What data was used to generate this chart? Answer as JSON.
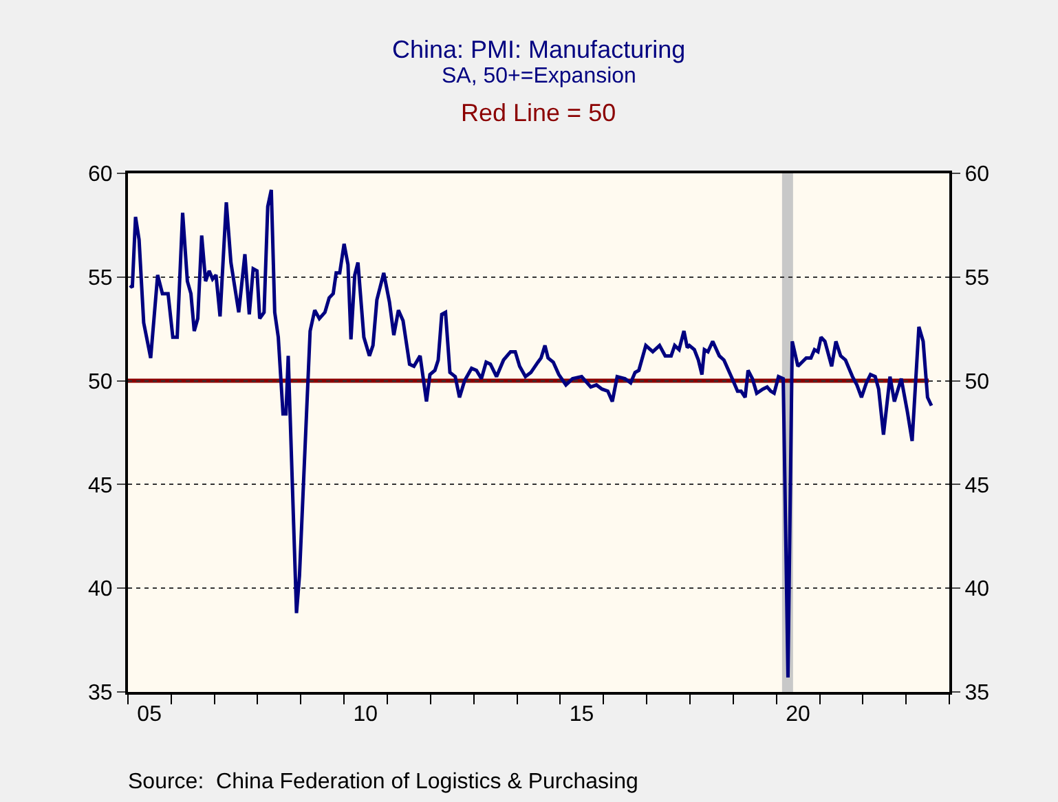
{
  "chart_data": {
    "type": "line",
    "title": "China: PMI: Manufacturing",
    "subtitle": "SA, 50+=Expansion",
    "annotations": [
      "Red Line = 50",
      "Source:  China Federation of Logistics & Purchasing"
    ],
    "x": [
      "2005-01-19",
      "2005-02-07",
      "2005-03-06",
      "2005-04-05",
      "2005-05-14",
      "2005-07-12",
      "2005-09-09",
      "2005-10-19",
      "2005-12-06",
      "2006-01-15",
      "2006-02-21",
      "2006-04-08",
      "2006-05-18",
      "2006-06-17",
      "2006-07-15",
      "2006-08-14",
      "2006-09-16",
      "2006-10-19",
      "2006-11-18",
      "2006-12-17",
      "2007-01-15",
      "2007-02-18",
      "2007-04-12",
      "2007-05-21",
      "2007-07-26",
      "2007-09-16",
      "2007-10-23",
      "2007-11-25",
      "2007-12-27",
      "2008-01-19",
      "2008-02-25",
      "2008-03-27",
      "2008-04-26",
      "2008-05-25",
      "2008-06-24",
      "2008-08-03",
      "2008-08-28",
      "2008-09-16",
      "2008-11-25",
      "2008-12-20",
      "2009-03-20",
      "2009-04-28",
      "2009-06-06",
      "2009-07-23",
      "2009-08-28",
      "2009-10-01",
      "2009-10-26",
      "2009-11-25",
      "2010-01-01",
      "2010-02-03",
      "2010-02-28",
      "2010-04-01",
      "2010-04-28",
      "2010-06-17",
      "2010-08-03",
      "2010-09-02",
      "2010-10-05",
      "2010-12-02",
      "2011-01-19",
      "2011-02-25",
      "2011-04-05",
      "2011-05-14",
      "2011-07-08",
      "2011-08-14",
      "2011-10-05",
      "2011-11-28",
      "2011-12-27",
      "2012-02-07",
      "2012-03-06",
      "2012-04-05",
      "2012-05-07",
      "2012-06-13",
      "2012-07-28",
      "2012-09-02",
      "2012-10-15",
      "2012-12-13",
      "2013-01-23",
      "2013-03-06",
      "2013-04-15",
      "2013-05-21",
      "2013-07-12",
      "2013-09-09",
      "2013-11-07",
      "2013-12-17",
      "2014-01-23",
      "2014-03-13",
      "2014-04-28",
      "2014-06-27",
      "2014-07-23",
      "2014-08-25",
      "2014-09-20",
      "2014-11-03",
      "2014-12-20",
      "2015-02-18",
      "2015-04-15",
      "2015-07-01",
      "2015-09-16",
      "2015-11-03",
      "2015-12-20",
      "2016-02-07",
      "2016-03-16",
      "2016-04-26",
      "2016-07-01",
      "2016-08-18",
      "2016-09-24",
      "2016-10-26",
      "2016-12-24",
      "2017-02-21",
      "2017-04-19",
      "2017-06-06",
      "2017-07-26",
      "2017-08-25",
      "2017-10-01",
      "2017-11-11",
      "2017-12-09",
      "2017-12-27",
      "2018-02-07",
      "2018-03-13",
      "2018-04-12",
      "2018-05-03",
      "2018-06-02",
      "2018-07-12",
      "2018-09-06",
      "2018-10-15",
      "2018-12-24",
      "2019-02-07",
      "2019-03-09",
      "2019-04-12",
      "2019-05-07",
      "2019-06-13",
      "2019-07-19",
      "2019-09-09",
      "2019-10-15",
      "2019-11-14",
      "2019-12-13",
      "2020-01-19",
      "2020-02-28",
      "2020-04-08",
      "2020-05-14",
      "2020-07-01",
      "2020-09-09",
      "2020-10-19",
      "2020-11-18",
      "2020-12-17",
      "2021-01-12",
      "2021-02-14",
      "2021-04-12",
      "2021-05-18",
      "2021-06-27",
      "2021-08-07",
      "2021-10-05",
      "2021-11-11",
      "2021-12-20",
      "2022-01-30",
      "2022-03-06",
      "2022-04-15",
      "2022-05-14",
      "2022-06-24",
      "2022-08-18",
      "2022-09-24",
      "2022-11-21",
      "2023-01-12",
      "2023-02-21",
      "2023-04-19",
      "2023-05-25",
      "2023-07-01",
      "2023-08-03"
    ],
    "series": [
      {
        "color": "#000080",
        "values": [
          54.6,
          54.5,
          57.9,
          56.8,
          52.8,
          51.1,
          55.1,
          54.2,
          54.2,
          52.1,
          52.1,
          58.1,
          54.8,
          54.2,
          52.4,
          53.0,
          57.0,
          54.8,
          55.3,
          54.9,
          55.1,
          53.1,
          58.6,
          55.7,
          53.3,
          56.1,
          53.2,
          55.4,
          55.3,
          53.0,
          53.3,
          58.4,
          59.2,
          53.3,
          52.1,
          48.4,
          48.4,
          51.2,
          38.8,
          40.6,
          52.4,
          53.4,
          53.0,
          53.3,
          54.0,
          54.2,
          55.2,
          55.2,
          56.6,
          55.6,
          52.0,
          55.1,
          55.7,
          52.1,
          51.2,
          51.7,
          53.9,
          55.2,
          53.8,
          52.2,
          53.4,
          52.9,
          50.8,
          50.7,
          51.2,
          49.0,
          50.3,
          50.5,
          51.0,
          53.2,
          53.3,
          50.4,
          50.2,
          49.2,
          50.0,
          50.6,
          50.5,
          50.1,
          50.9,
          50.8,
          50.2,
          51.0,
          51.4,
          51.4,
          50.7,
          50.2,
          50.4,
          50.9,
          51.1,
          51.7,
          51.1,
          50.9,
          50.3,
          49.8,
          50.1,
          50.2,
          49.7,
          49.8,
          49.6,
          49.5,
          49.0,
          50.2,
          50.1,
          49.9,
          50.4,
          50.5,
          51.7,
          51.4,
          51.7,
          51.2,
          51.2,
          51.7,
          51.5,
          52.4,
          51.6,
          51.7,
          51.5,
          51.0,
          50.3,
          51.5,
          51.4,
          51.9,
          51.2,
          51.0,
          50.1,
          49.5,
          49.5,
          49.2,
          50.5,
          50.1,
          49.4,
          49.6,
          49.7,
          49.5,
          49.4,
          50.2,
          50.1,
          35.7,
          51.9,
          50.7,
          51.1,
          51.1,
          51.5,
          51.4,
          52.1,
          51.9,
          50.7,
          51.9,
          51.2,
          51.0,
          50.2,
          49.8,
          49.2,
          49.9,
          50.3,
          50.2,
          49.6,
          47.4,
          50.2,
          49.0,
          50.1,
          48.5,
          47.1,
          52.6,
          51.9,
          49.2,
          48.8
        ]
      }
    ],
    "xlim": [
      "2005-01-01",
      "2024-01-01"
    ],
    "xticks": [
      {
        "value": "2005-01-01",
        "label": null
      },
      {
        "value": "2005-07-01",
        "label": "05"
      },
      {
        "value": "2006-01-01",
        "label": null
      },
      {
        "value": "2007-01-01",
        "label": null
      },
      {
        "value": "2008-01-01",
        "label": null
      },
      {
        "value": "2009-01-01",
        "label": null
      },
      {
        "value": "2010-01-01",
        "label": null
      },
      {
        "value": "2010-07-01",
        "label": "10"
      },
      {
        "value": "2011-01-01",
        "label": null
      },
      {
        "value": "2012-01-01",
        "label": null
      },
      {
        "value": "2013-01-01",
        "label": null
      },
      {
        "value": "2014-01-01",
        "label": null
      },
      {
        "value": "2015-01-01",
        "label": null
      },
      {
        "value": "2015-07-01",
        "label": "15"
      },
      {
        "value": "2016-01-01",
        "label": null
      },
      {
        "value": "2017-01-01",
        "label": null
      },
      {
        "value": "2018-01-01",
        "label": null
      },
      {
        "value": "2019-01-01",
        "label": null
      },
      {
        "value": "2020-01-01",
        "label": null
      },
      {
        "value": "2020-07-01",
        "label": "20"
      },
      {
        "value": "2021-01-01",
        "label": null
      },
      {
        "value": "2022-01-01",
        "label": null
      },
      {
        "value": "2023-01-01",
        "label": null
      },
      {
        "value": "2024-01-01",
        "label": null
      }
    ],
    "ylim": [
      35,
      60
    ],
    "yticks": [
      35,
      40,
      45,
      50,
      55,
      60
    ],
    "y2lim": [
      35,
      60
    ],
    "y2ticks": [
      35,
      40,
      45,
      50,
      55,
      60
    ],
    "ref_lines": [
      {
        "axis": "y",
        "value": 50,
        "color": "#8b0000"
      }
    ],
    "bands": [
      {
        "axis": "x",
        "from": "2020-02-18",
        "to": "2020-05-21",
        "color": "#c8c8c8"
      }
    ],
    "grid": "y",
    "line_style": "solid",
    "marker": "none"
  }
}
